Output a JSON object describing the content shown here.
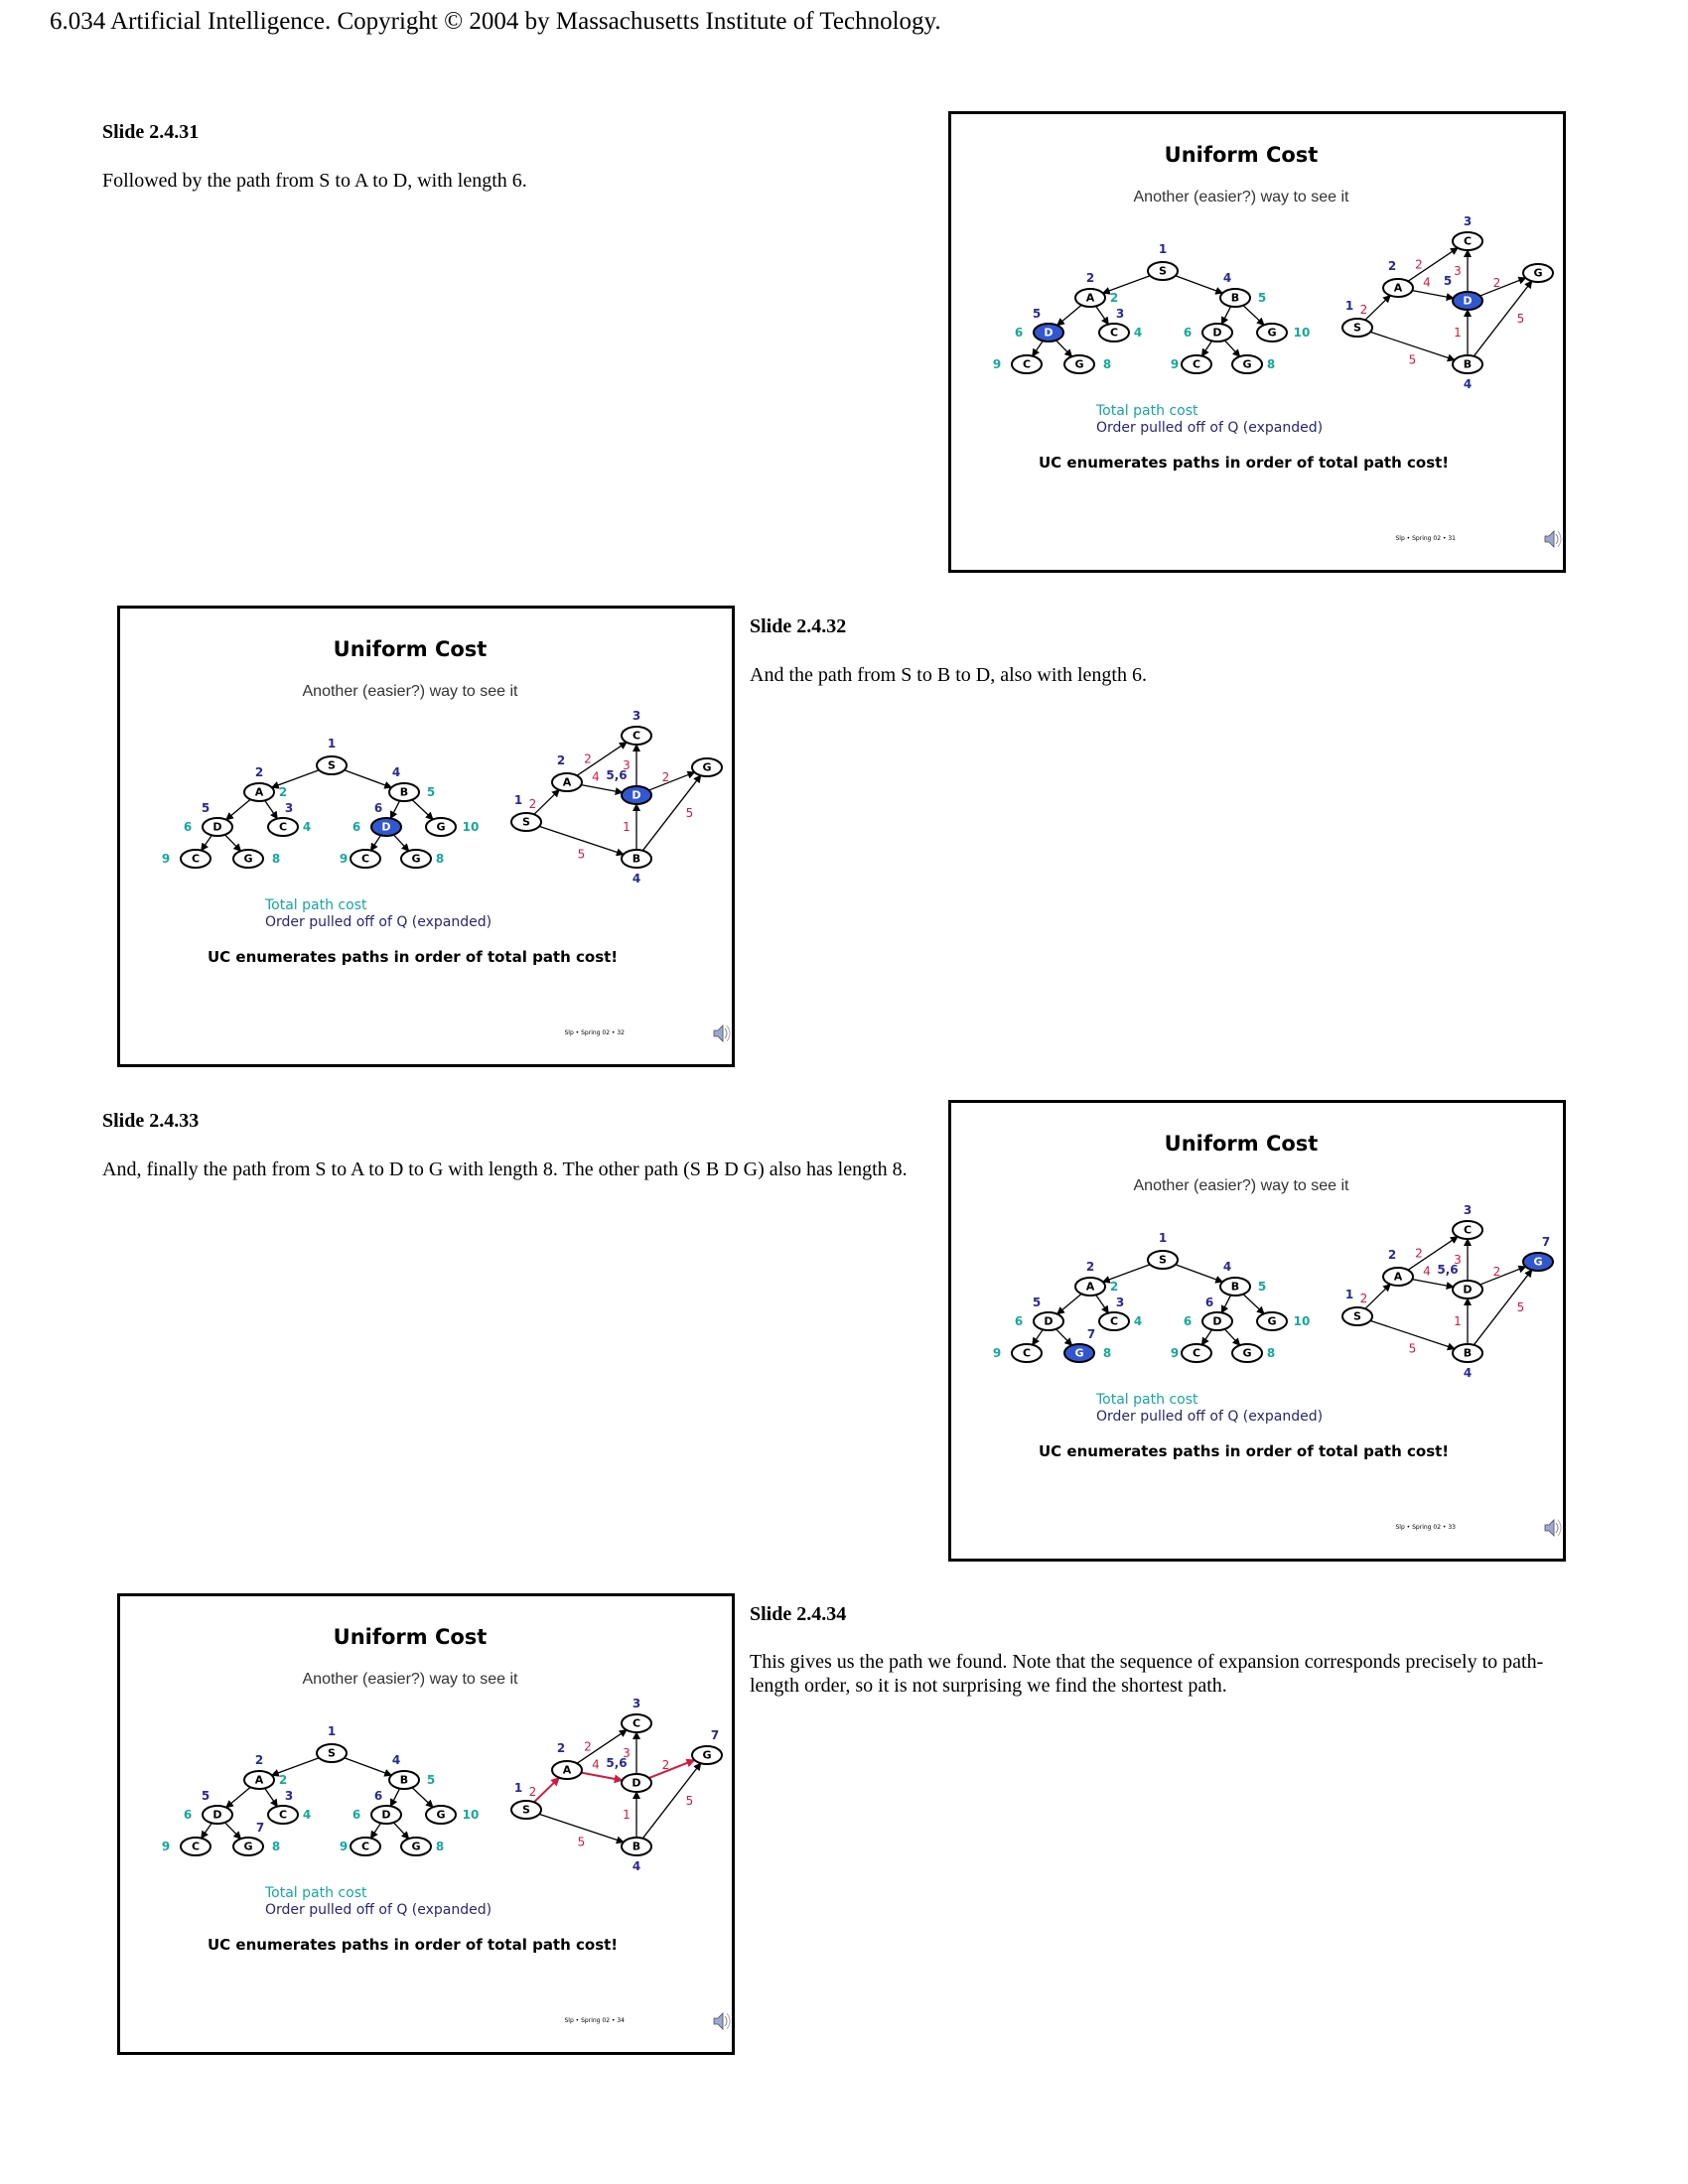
{
  "header": "6.034 Artificial Intelligence. Copyright © 2004 by Massachusetts Institute of Technology.",
  "slides": [
    {
      "label": "Slide 2.4.31",
      "caption": "Followed by the path from S to A to D, with length 6.",
      "title": "Uniform Cost",
      "subtitle": "Another (easier?) way to see it",
      "legend_cost": "Total path cost",
      "legend_order": "Order pulled off of Q (expanded)",
      "note": "UC enumerates paths in order of total path cost!",
      "footer": "Slp • Spring 02 • 31",
      "tree_highlight": [
        "D1"
      ],
      "tree_order": {
        "S": "1",
        "A": "2",
        "B": "4",
        "D1": "5",
        "C1": "3"
      },
      "graph_highlight": [
        "D"
      ],
      "graph_order": {
        "S": "1",
        "A": "2",
        "C": "3",
        "B": "4",
        "D": "5"
      },
      "red_edges": []
    },
    {
      "label": "Slide 2.4.32",
      "caption": "And the path from S to B to D, also with length 6.",
      "title": "Uniform Cost",
      "subtitle": "Another (easier?) way to see it",
      "legend_cost": "Total path cost",
      "legend_order": "Order pulled off of Q (expanded)",
      "note": "UC enumerates paths in order of total path cost!",
      "footer": "Slp • Spring 02 • 32",
      "tree_highlight": [
        "D2"
      ],
      "tree_order": {
        "S": "1",
        "A": "2",
        "B": "4",
        "D1": "5",
        "C1": "3",
        "D2": "6"
      },
      "graph_highlight": [
        "D"
      ],
      "graph_order": {
        "S": "1",
        "A": "2",
        "C": "3",
        "B": "4",
        "D": "5,6"
      },
      "red_edges": []
    },
    {
      "label": "Slide 2.4.33",
      "caption": "And, finally the path from S to A to D to G with length 8. The other path (S B D G) also has length 8.",
      "title": "Uniform Cost",
      "subtitle": "Another (easier?) way to see it",
      "legend_cost": "Total path cost",
      "legend_order": "Order pulled off of Q (expanded)",
      "note": "UC enumerates paths in order of total path cost!",
      "footer": "Slp • Spring 02 • 33",
      "tree_highlight": [
        "G1"
      ],
      "tree_order": {
        "S": "1",
        "A": "2",
        "B": "4",
        "D1": "5",
        "C1": "3",
        "D2": "6",
        "G1": "7"
      },
      "graph_highlight": [
        "G"
      ],
      "graph_order": {
        "S": "1",
        "A": "2",
        "C": "3",
        "B": "4",
        "D": "5,6",
        "G": "7"
      },
      "red_edges": []
    },
    {
      "label": "Slide 2.4.34",
      "caption": "This gives us the path we found. Note that the sequence of expansion corresponds precisely to path-length order, so it is not surprising we find the shortest path.",
      "title": "Uniform Cost",
      "subtitle": "Another (easier?) way to see it",
      "legend_cost": "Total path cost",
      "legend_order": "Order pulled off of Q (expanded)",
      "note": "UC enumerates paths in order of total path cost!",
      "footer": "Slp • Spring 02 • 34",
      "tree_highlight": [],
      "tree_order": {
        "S": "1",
        "A": "2",
        "B": "4",
        "D1": "5",
        "C1": "3",
        "D2": "6",
        "G1": "7"
      },
      "graph_highlight": [],
      "graph_order": {
        "S": "1",
        "A": "2",
        "C": "3",
        "B": "4",
        "D": "5,6",
        "G": "7"
      },
      "red_edges": [
        "S-A",
        "A-D",
        "D-G"
      ]
    }
  ],
  "tree": {
    "nodes": [
      {
        "id": "S",
        "label": "S",
        "cost": ""
      },
      {
        "id": "A",
        "label": "A",
        "cost": "2"
      },
      {
        "id": "B",
        "label": "B",
        "cost": "5"
      },
      {
        "id": "D1",
        "label": "D",
        "cost": "6"
      },
      {
        "id": "C1",
        "label": "C",
        "cost": "4"
      },
      {
        "id": "D2",
        "label": "D",
        "cost": "6"
      },
      {
        "id": "G2",
        "label": "G",
        "cost": "10"
      },
      {
        "id": "C2",
        "label": "C",
        "cost": "9"
      },
      {
        "id": "G1",
        "label": "G",
        "cost": "8"
      },
      {
        "id": "C3",
        "label": "C",
        "cost": "9"
      },
      {
        "id": "G3",
        "label": "G",
        "cost": "8"
      }
    ],
    "edges": [
      [
        "S",
        "A"
      ],
      [
        "S",
        "B"
      ],
      [
        "A",
        "D1"
      ],
      [
        "A",
        "C1"
      ],
      [
        "B",
        "D2"
      ],
      [
        "B",
        "G2"
      ],
      [
        "D1",
        "C2"
      ],
      [
        "D1",
        "G1"
      ],
      [
        "D2",
        "C3"
      ],
      [
        "D2",
        "G3"
      ]
    ]
  },
  "graph": {
    "nodes": [
      {
        "id": "S",
        "label": "S"
      },
      {
        "id": "A",
        "label": "A"
      },
      {
        "id": "C",
        "label": "C"
      },
      {
        "id": "D",
        "label": "D"
      },
      {
        "id": "B",
        "label": "B"
      },
      {
        "id": "G",
        "label": "G"
      }
    ],
    "edges": [
      {
        "from": "S",
        "to": "A",
        "w": "2"
      },
      {
        "from": "A",
        "to": "C",
        "w": "2"
      },
      {
        "from": "A",
        "to": "D",
        "w": "4"
      },
      {
        "from": "D",
        "to": "C",
        "w": "3"
      },
      {
        "from": "D",
        "to": "G",
        "w": "2"
      },
      {
        "from": "B",
        "to": "D",
        "w": "1"
      },
      {
        "from": "B",
        "to": "G",
        "w": "5"
      },
      {
        "from": "S",
        "to": "B",
        "w": "5"
      }
    ]
  }
}
